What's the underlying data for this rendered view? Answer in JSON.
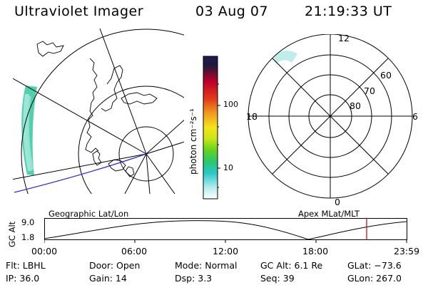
{
  "header": {
    "title": "Ultraviolet Imager",
    "date": "03 Aug 07",
    "time": "21:19:33 UT"
  },
  "colorbar": {
    "unit_label": "photon cm⁻²s⁻¹",
    "ticks": [
      "100",
      "10"
    ],
    "colors": [
      "#2a1458",
      "#1a1a3a",
      "#c0002a",
      "#e23c1a",
      "#f09b1e",
      "#f4e41c",
      "#c8e618",
      "#62d21e",
      "#2ac86e",
      "#28c8c8",
      "#b4ecec",
      "#ffffff"
    ]
  },
  "geo_map": {
    "label": "Geographic Lat/Lon",
    "aurora_color": "#34c8a0"
  },
  "polar_plot": {
    "label": "Apex  MLat/MLT",
    "mlt_labels": [
      "12",
      "18",
      "6",
      "0"
    ],
    "lat_labels": [
      "60",
      "70",
      "80"
    ]
  },
  "orbit_plot": {
    "y_axis_label": "GC Alt",
    "y_ticks": [
      "9.0",
      "1.8"
    ],
    "x_ticks": [
      "00:00",
      "06:00",
      "12:00",
      "18:00",
      "23:59"
    ],
    "marker_color": "#c00000"
  },
  "info": {
    "flt": "Flt:  LBHL",
    "ip": "IP:  36.0",
    "door": "Door:  Open",
    "gain": "Gain:  14",
    "mode": "Mode:  Normal",
    "dsp": "Dsp:       3.3",
    "gcalt": "GC Alt:  6.1  Re",
    "seq": "Seq:  39",
    "glat": "GLat:  −73.6",
    "glon": "GLon:  267.0"
  }
}
